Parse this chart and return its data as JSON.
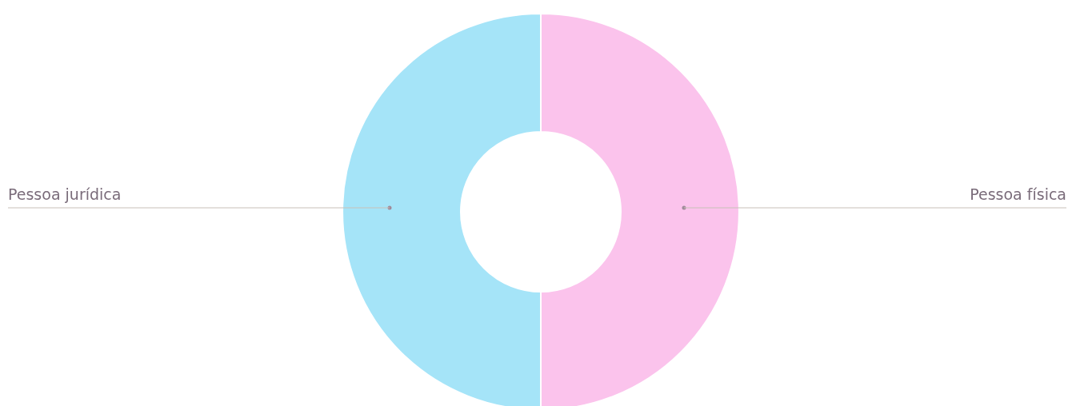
{
  "chart_data": {
    "type": "donut",
    "categories": [
      "Pessoa física",
      "Pessoa jurídica"
    ],
    "values": [
      50,
      50
    ],
    "colors": [
      "#fbc3ec",
      "#a5e4f8"
    ],
    "legend": false
  }
}
